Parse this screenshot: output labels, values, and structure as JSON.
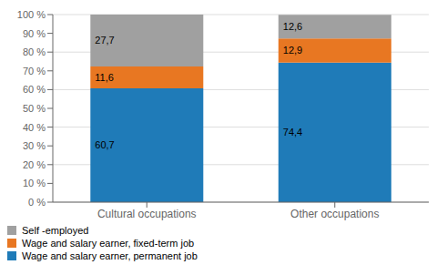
{
  "chart_data": {
    "type": "bar",
    "stacked": true,
    "categories": [
      "Cultural occupations",
      "Other occupations"
    ],
    "series": [
      {
        "name": "Wage and salary earner, permanent job",
        "color": "#1F7BB8",
        "values": [
          60.7,
          74.4
        ],
        "value_labels": [
          "60,7",
          "74,4"
        ]
      },
      {
        "name": "Wage and salary earner, fixed-term job",
        "color": "#E87722",
        "values": [
          11.6,
          12.9
        ],
        "value_labels": [
          "11,6",
          "12,9"
        ]
      },
      {
        "name": "Self -employed",
        "color": "#A0A0A0",
        "values": [
          27.7,
          12.6
        ],
        "value_labels": [
          "27,7",
          "12,6"
        ]
      }
    ],
    "ylim": [
      0,
      100
    ],
    "yticks": [
      {
        "value": 0,
        "label": "0 %"
      },
      {
        "value": 10,
        "label": "10 %"
      },
      {
        "value": 20,
        "label": "20 %"
      },
      {
        "value": 30,
        "label": "30 %"
      },
      {
        "value": 40,
        "label": "40 %"
      },
      {
        "value": 50,
        "label": "50 %"
      },
      {
        "value": 60,
        "label": "60 %"
      },
      {
        "value": 70,
        "label": "70 %"
      },
      {
        "value": 80,
        "label": "80 %"
      },
      {
        "value": 90,
        "label": "90 %"
      },
      {
        "value": 100,
        "label": "100 %"
      }
    ],
    "grid": true,
    "data_labels": true,
    "legend": "bottom"
  }
}
